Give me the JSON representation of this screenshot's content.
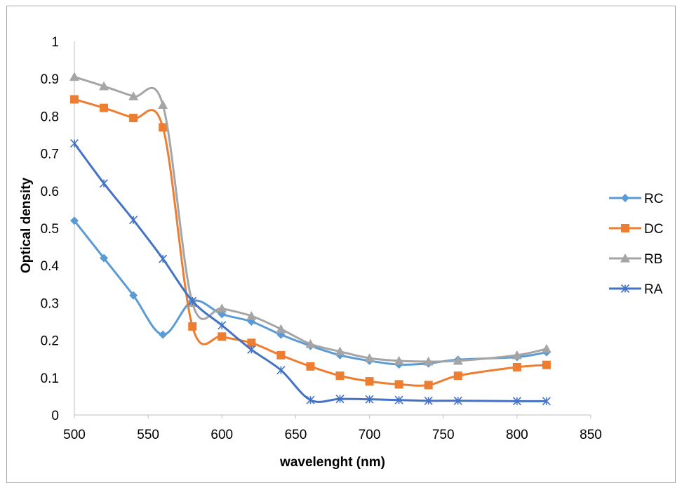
{
  "chart_data": {
    "type": "line",
    "title": "",
    "xlabel": "wavelenght (nm)",
    "ylabel": "Optical density",
    "xlim": [
      500,
      850
    ],
    "ylim": [
      0,
      1
    ],
    "x_ticks": [
      "500",
      "550",
      "600",
      "650",
      "700",
      "750",
      "800",
      "850"
    ],
    "y_ticks": [
      "0",
      "0.1",
      "0.2",
      "0.3",
      "0.4",
      "0.5",
      "0.6",
      "0.7",
      "0.8",
      "0.9",
      "1"
    ],
    "grid": false,
    "smooth": true,
    "legend_position": "right",
    "series": [
      {
        "name": "RC",
        "color": "#5b9bd5",
        "marker": "diamond",
        "x": [
          500,
          520,
          540,
          560,
          580,
          600,
          620,
          640,
          660,
          680,
          700,
          720,
          740,
          760,
          800,
          820
        ],
        "y": [
          0.52,
          0.42,
          0.32,
          0.215,
          0.305,
          0.27,
          0.25,
          0.215,
          0.185,
          0.16,
          0.145,
          0.135,
          0.138,
          0.148,
          0.155,
          0.168
        ]
      },
      {
        "name": "DC",
        "color": "#ed7d31",
        "marker": "square",
        "x": [
          500,
          520,
          540,
          560,
          580,
          600,
          620,
          640,
          660,
          680,
          700,
          720,
          740,
          760,
          800,
          820
        ],
        "y": [
          0.845,
          0.822,
          0.795,
          0.77,
          0.237,
          0.21,
          0.193,
          0.16,
          0.13,
          0.105,
          0.09,
          0.082,
          0.08,
          0.105,
          0.128,
          0.134
        ]
      },
      {
        "name": "RB",
        "color": "#a5a5a5",
        "marker": "triangle",
        "x": [
          500,
          520,
          540,
          560,
          580,
          600,
          620,
          640,
          660,
          680,
          700,
          720,
          740,
          760,
          800,
          820
        ],
        "y": [
          0.905,
          0.88,
          0.853,
          0.83,
          0.3,
          0.285,
          0.265,
          0.23,
          0.19,
          0.17,
          0.152,
          0.145,
          0.143,
          0.145,
          0.16,
          0.177
        ]
      },
      {
        "name": "RA",
        "color": "#4472c4",
        "marker": "asterisk",
        "x": [
          500,
          520,
          540,
          560,
          580,
          600,
          620,
          640,
          660,
          680,
          700,
          720,
          740,
          760,
          800,
          820
        ],
        "y": [
          0.727,
          0.62,
          0.522,
          0.418,
          0.305,
          0.24,
          0.175,
          0.12,
          0.04,
          0.043,
          0.042,
          0.04,
          0.038,
          0.038,
          0.037,
          0.037
        ]
      }
    ]
  }
}
